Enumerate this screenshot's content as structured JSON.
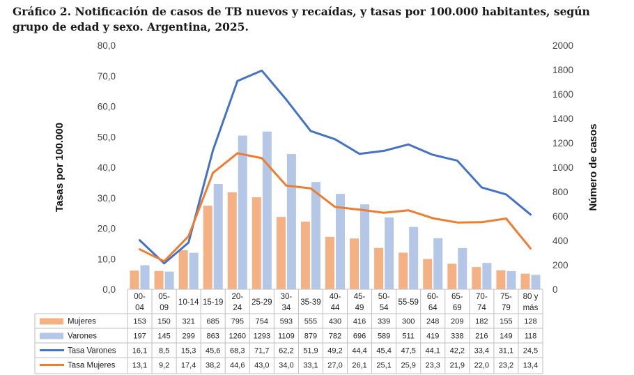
{
  "title": "Gráfico 2. Notificación de casos de TB nuevos y recaídas, y tasas por 100.000 habitantes, según grupo de edad y sexo. Argentina, 2025.",
  "chart_data": {
    "type": "bar",
    "categories": [
      "00-\n04",
      "05-\n09",
      "10-14",
      "15-19",
      "20-\n24",
      "25-29",
      "30-\n34",
      "35-39",
      "40-\n44",
      "45-\n49",
      "50-\n54",
      "55-59",
      "60-\n64",
      "65-\n69",
      "70-\n74",
      "75-\n79",
      "80 y\nmás"
    ],
    "category_labels": [
      [
        "00-",
        "04"
      ],
      [
        "05-",
        "09"
      ],
      [
        "10-14"
      ],
      [
        "15-19"
      ],
      [
        "20-",
        "24"
      ],
      [
        "25-29"
      ],
      [
        "30-",
        "34"
      ],
      [
        "35-39"
      ],
      [
        "40-",
        "44"
      ],
      [
        "45-",
        "49"
      ],
      [
        "50-",
        "54"
      ],
      [
        "55-59"
      ],
      [
        "60-",
        "64"
      ],
      [
        "65-",
        "69"
      ],
      [
        "70-",
        "74"
      ],
      [
        "75-",
        "79"
      ],
      [
        "80 y",
        "más"
      ]
    ],
    "ylabel_left": "Tasas por 100.000",
    "ylabel_right": "Número de casos",
    "ylim_left": [
      0,
      80
    ],
    "ylim_right": [
      0,
      2000
    ],
    "left_ticks": [
      "0,0",
      "10,0",
      "20,0",
      "30,0",
      "40,0",
      "50,0",
      "60,0",
      "70,0",
      "80,0"
    ],
    "right_ticks": [
      "0",
      "200",
      "400",
      "600",
      "800",
      "1000",
      "1200",
      "1400",
      "1600",
      "1800",
      "2000"
    ],
    "series": [
      {
        "name": "Mujeres",
        "kind": "bar",
        "axis": "right",
        "color": "#f4b183",
        "values": [
          153,
          150,
          321,
          685,
          795,
          754,
          593,
          555,
          430,
          416,
          339,
          300,
          248,
          209,
          182,
          155,
          128
        ]
      },
      {
        "name": "Varones",
        "kind": "bar",
        "axis": "right",
        "color": "#b4c7e7",
        "values": [
          197,
          145,
          299,
          863,
          1260,
          1293,
          1109,
          879,
          782,
          696,
          589,
          511,
          419,
          338,
          216,
          149,
          118
        ]
      },
      {
        "name": "Tasa Varones",
        "kind": "line",
        "axis": "left",
        "color": "#4472c4",
        "values": [
          16.1,
          8.5,
          15.3,
          45.6,
          68.3,
          71.7,
          62.2,
          51.9,
          49.2,
          44.4,
          45.4,
          47.5,
          44.1,
          42.2,
          33.4,
          31.1,
          24.5
        ],
        "labels": [
          "16,1",
          "8,5",
          "15,3",
          "45,6",
          "68,3",
          "71,7",
          "62,2",
          "51,9",
          "49,2",
          "44,4",
          "45,4",
          "47,5",
          "44,1",
          "42,2",
          "33,4",
          "31,1",
          "24,5"
        ]
      },
      {
        "name": "Tasa Mujeres",
        "kind": "line",
        "axis": "left",
        "color": "#ed7d31",
        "values": [
          13.1,
          9.2,
          17.4,
          38.2,
          44.6,
          43.0,
          34.0,
          33.1,
          27.0,
          26.1,
          25.1,
          25.9,
          23.3,
          21.9,
          22.0,
          23.2,
          13.4
        ],
        "labels": [
          "13,1",
          "9,2",
          "17,4",
          "38,2",
          "44,6",
          "43,0",
          "34,0",
          "33,1",
          "27,0",
          "26,1",
          "25,1",
          "25,9",
          "23,3",
          "21,9",
          "22,0",
          "23,2",
          "13,4"
        ]
      }
    ],
    "grid": false,
    "legend": "data-table-below"
  }
}
